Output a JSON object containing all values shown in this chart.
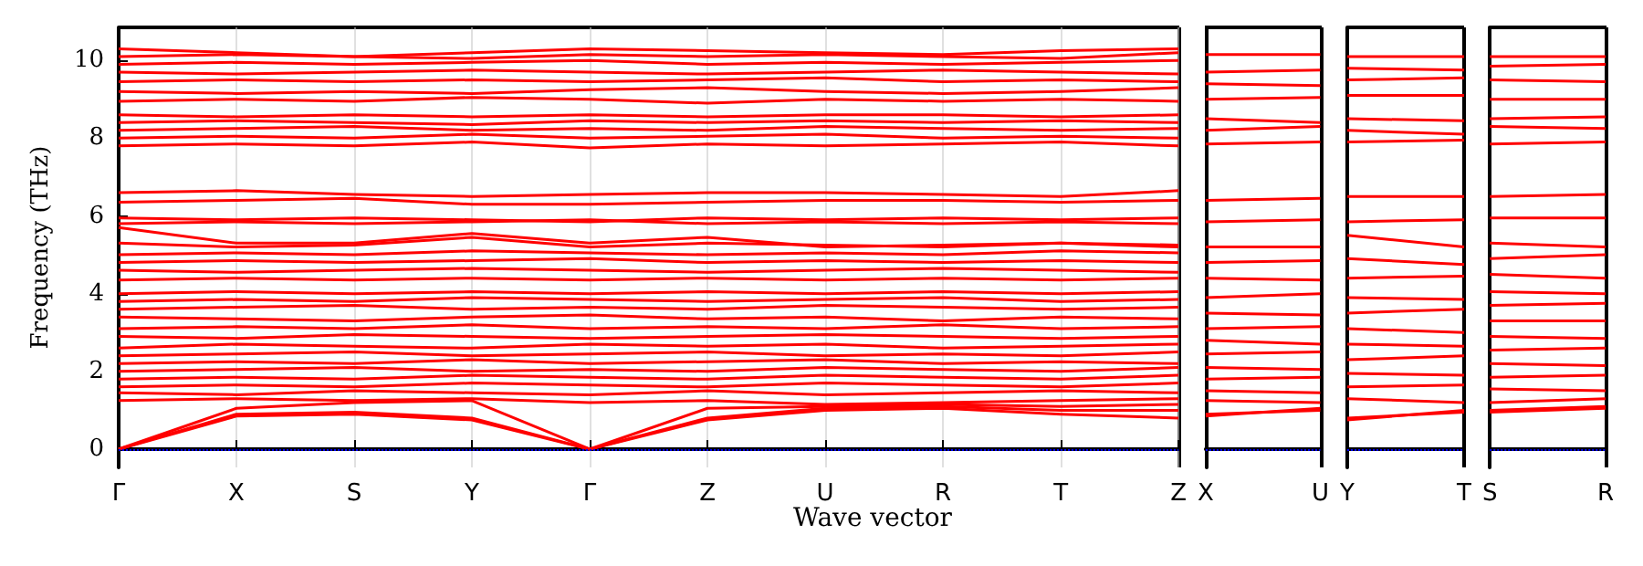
{
  "chart_data": [
    {
      "type": "line",
      "xlabel": "Wave vector",
      "ylabel": "Frequency (THz)",
      "categories": [
        "Γ",
        "X",
        "S",
        "Y",
        "Γ",
        "Z",
        "U",
        "R",
        "T",
        "Z"
      ],
      "ylim": [
        -0.47,
        10.85
      ],
      "yticks": [
        0,
        2,
        4,
        6,
        8,
        10
      ],
      "grid": "x",
      "ref_lines": [
        {
          "axis": "y",
          "value": 0,
          "color": "#0000ff",
          "line_style": "dotted"
        }
      ],
      "series": [
        {
          "color": "#ff0000",
          "values": [
            0,
            0.85,
            0.9,
            0.75,
            0,
            0.75,
            1.0,
            1.05,
            0.9,
            0.8
          ]
        },
        {
          "color": "#ff0000",
          "values": [
            0,
            0.9,
            0.95,
            0.8,
            0,
            0.8,
            1.05,
            1.1,
            1.0,
            1.0
          ]
        },
        {
          "color": "#ff0000",
          "values": [
            0,
            1.05,
            1.2,
            1.25,
            0,
            1.05,
            1.1,
            1.15,
            1.1,
            1.15
          ]
        },
        {
          "color": "#ff0000",
          "values": [
            1.25,
            1.3,
            1.25,
            1.3,
            1.2,
            1.25,
            1.15,
            1.2,
            1.25,
            1.3
          ]
        },
        {
          "color": "#ff0000",
          "values": [
            1.45,
            1.4,
            1.5,
            1.45,
            1.4,
            1.5,
            1.4,
            1.45,
            1.5,
            1.45
          ]
        },
        {
          "color": "#ff0000",
          "values": [
            1.6,
            1.65,
            1.6,
            1.7,
            1.65,
            1.6,
            1.7,
            1.65,
            1.6,
            1.7
          ]
        },
        {
          "color": "#ff0000",
          "values": [
            1.8,
            1.85,
            1.8,
            1.9,
            1.85,
            1.8,
            1.9,
            1.85,
            1.8,
            1.9
          ]
        },
        {
          "color": "#ff0000",
          "values": [
            2.0,
            2.05,
            2.1,
            2.0,
            2.05,
            2.0,
            2.1,
            2.05,
            2.0,
            2.1
          ]
        },
        {
          "color": "#ff0000",
          "values": [
            2.2,
            2.25,
            2.2,
            2.3,
            2.2,
            2.25,
            2.3,
            2.2,
            2.25,
            2.2
          ]
        },
        {
          "color": "#ff0000",
          "values": [
            2.4,
            2.45,
            2.5,
            2.4,
            2.45,
            2.5,
            2.4,
            2.45,
            2.4,
            2.5
          ]
        },
        {
          "color": "#ff0000",
          "values": [
            2.6,
            2.7,
            2.65,
            2.6,
            2.7,
            2.65,
            2.7,
            2.6,
            2.65,
            2.7
          ]
        },
        {
          "color": "#ff0000",
          "values": [
            2.9,
            2.85,
            2.95,
            2.9,
            2.85,
            2.9,
            2.95,
            2.9,
            2.85,
            2.9
          ]
        },
        {
          "color": "#ff0000",
          "values": [
            3.1,
            3.15,
            3.1,
            3.2,
            3.1,
            3.15,
            3.1,
            3.2,
            3.1,
            3.15
          ]
        },
        {
          "color": "#ff0000",
          "values": [
            3.4,
            3.35,
            3.3,
            3.4,
            3.45,
            3.35,
            3.4,
            3.3,
            3.4,
            3.35
          ]
        },
        {
          "color": "#ff0000",
          "values": [
            3.6,
            3.65,
            3.7,
            3.6,
            3.65,
            3.6,
            3.7,
            3.65,
            3.6,
            3.65
          ]
        },
        {
          "color": "#ff0000",
          "values": [
            3.8,
            3.85,
            3.8,
            3.9,
            3.85,
            3.8,
            3.85,
            3.9,
            3.8,
            3.85
          ]
        },
        {
          "color": "#ff0000",
          "values": [
            4.0,
            4.05,
            4.0,
            4.05,
            4.0,
            4.05,
            4.0,
            4.05,
            4.0,
            4.05
          ]
        },
        {
          "color": "#ff0000",
          "values": [
            4.35,
            4.4,
            4.35,
            4.4,
            4.35,
            4.4,
            4.35,
            4.4,
            4.35,
            4.4
          ]
        },
        {
          "color": "#ff0000",
          "values": [
            4.6,
            4.55,
            4.6,
            4.65,
            4.6,
            4.55,
            4.6,
            4.65,
            4.6,
            4.55
          ]
        },
        {
          "color": "#ff0000",
          "values": [
            4.8,
            4.85,
            4.8,
            4.85,
            4.9,
            4.8,
            4.85,
            4.8,
            4.85,
            4.8
          ]
        },
        {
          "color": "#ff0000",
          "values": [
            5.0,
            5.05,
            5.0,
            5.1,
            5.05,
            5.0,
            5.05,
            5.0,
            5.1,
            5.05
          ]
        },
        {
          "color": "#ff0000",
          "values": [
            5.3,
            5.2,
            5.25,
            5.45,
            5.2,
            5.3,
            5.25,
            5.2,
            5.3,
            5.25
          ]
        },
        {
          "color": "#ff0000",
          "values": [
            5.7,
            5.3,
            5.3,
            5.55,
            5.3,
            5.45,
            5.2,
            5.25,
            5.3,
            5.2
          ]
        },
        {
          "color": "#ff0000",
          "values": [
            5.8,
            5.85,
            5.8,
            5.85,
            5.9,
            5.8,
            5.85,
            5.8,
            5.85,
            5.8
          ]
        },
        {
          "color": "#ff0000",
          "values": [
            5.95,
            5.9,
            5.95,
            5.9,
            5.85,
            5.95,
            5.9,
            5.95,
            5.9,
            5.95
          ]
        },
        {
          "color": "#ff0000",
          "values": [
            6.35,
            6.4,
            6.45,
            6.3,
            6.3,
            6.35,
            6.4,
            6.4,
            6.35,
            6.4
          ]
        },
        {
          "color": "#ff0000",
          "values": [
            6.6,
            6.65,
            6.55,
            6.5,
            6.55,
            6.6,
            6.6,
            6.55,
            6.5,
            6.65
          ]
        },
        {
          "color": "#ff0000",
          "values": [
            7.8,
            7.85,
            7.8,
            7.9,
            7.75,
            7.85,
            7.8,
            7.85,
            7.9,
            7.8
          ]
        },
        {
          "color": "#ff0000",
          "values": [
            8.0,
            8.05,
            8.0,
            8.1,
            8.0,
            8.05,
            8.1,
            8.0,
            8.05,
            8.0
          ]
        },
        {
          "color": "#ff0000",
          "values": [
            8.2,
            8.25,
            8.3,
            8.2,
            8.25,
            8.2,
            8.3,
            8.25,
            8.2,
            8.25
          ]
        },
        {
          "color": "#ff0000",
          "values": [
            8.4,
            8.45,
            8.4,
            8.35,
            8.45,
            8.4,
            8.45,
            8.4,
            8.45,
            8.4
          ]
        },
        {
          "color": "#ff0000",
          "values": [
            8.6,
            8.55,
            8.6,
            8.55,
            8.6,
            8.55,
            8.6,
            8.6,
            8.55,
            8.6
          ]
        },
        {
          "color": "#ff0000",
          "values": [
            8.95,
            9.0,
            8.95,
            9.05,
            9.0,
            8.9,
            9.0,
            8.95,
            9.0,
            8.95
          ]
        },
        {
          "color": "#ff0000",
          "values": [
            9.2,
            9.15,
            9.2,
            9.15,
            9.25,
            9.3,
            9.2,
            9.15,
            9.2,
            9.3
          ]
        },
        {
          "color": "#ff0000",
          "values": [
            9.45,
            9.5,
            9.45,
            9.5,
            9.45,
            9.5,
            9.55,
            9.45,
            9.5,
            9.45
          ]
        },
        {
          "color": "#ff0000",
          "values": [
            9.7,
            9.65,
            9.7,
            9.75,
            9.7,
            9.65,
            9.7,
            9.75,
            9.7,
            9.65
          ]
        },
        {
          "color": "#ff0000",
          "values": [
            9.9,
            9.95,
            9.9,
            9.95,
            10.0,
            9.9,
            9.95,
            9.9,
            9.95,
            10.0
          ]
        },
        {
          "color": "#ff0000",
          "values": [
            10.1,
            10.15,
            10.1,
            10.05,
            10.15,
            10.1,
            10.15,
            10.1,
            10.05,
            10.2
          ]
        },
        {
          "color": "#ff0000",
          "values": [
            10.3,
            10.2,
            10.1,
            10.2,
            10.3,
            10.25,
            10.2,
            10.15,
            10.25,
            10.3
          ]
        }
      ]
    },
    {
      "type": "line",
      "categories": [
        "X",
        "U"
      ],
      "ylim": [
        -0.47,
        10.85
      ],
      "yticks": [
        0,
        2,
        4,
        6,
        8,
        10
      ],
      "tick_labels": "x",
      "ref_lines": [
        {
          "axis": "y",
          "value": 0,
          "color": "#0000ff",
          "line_style": "dotted"
        }
      ],
      "series": [
        {
          "color": "#ff0000",
          "values": [
            0.85,
            1.05
          ]
        },
        {
          "color": "#ff0000",
          "values": [
            0.9,
            1.0
          ]
        },
        {
          "color": "#ff0000",
          "values": [
            1.25,
            1.2
          ]
        },
        {
          "color": "#ff0000",
          "values": [
            1.5,
            1.45
          ]
        },
        {
          "color": "#ff0000",
          "values": [
            1.8,
            1.85
          ]
        },
        {
          "color": "#ff0000",
          "values": [
            2.1,
            2.05
          ]
        },
        {
          "color": "#ff0000",
          "values": [
            2.45,
            2.5
          ]
        },
        {
          "color": "#ff0000",
          "values": [
            2.8,
            2.7
          ]
        },
        {
          "color": "#ff0000",
          "values": [
            3.1,
            3.15
          ]
        },
        {
          "color": "#ff0000",
          "values": [
            3.5,
            3.45
          ]
        },
        {
          "color": "#ff0000",
          "values": [
            3.9,
            4.0
          ]
        },
        {
          "color": "#ff0000",
          "values": [
            4.4,
            4.35
          ]
        },
        {
          "color": "#ff0000",
          "values": [
            4.8,
            4.85
          ]
        },
        {
          "color": "#ff0000",
          "values": [
            5.2,
            5.2
          ]
        },
        {
          "color": "#ff0000",
          "values": [
            5.85,
            5.9
          ]
        },
        {
          "color": "#ff0000",
          "values": [
            6.4,
            6.45
          ]
        },
        {
          "color": "#ff0000",
          "values": [
            7.85,
            7.9
          ]
        },
        {
          "color": "#ff0000",
          "values": [
            8.2,
            8.3
          ]
        },
        {
          "color": "#ff0000",
          "values": [
            8.5,
            8.4
          ]
        },
        {
          "color": "#ff0000",
          "values": [
            9.0,
            9.05
          ]
        },
        {
          "color": "#ff0000",
          "values": [
            9.4,
            9.35
          ]
        },
        {
          "color": "#ff0000",
          "values": [
            9.7,
            9.75
          ]
        },
        {
          "color": "#ff0000",
          "values": [
            10.15,
            10.15
          ]
        }
      ]
    },
    {
      "type": "line",
      "categories": [
        "Y",
        "T"
      ],
      "ylim": [
        -0.47,
        10.85
      ],
      "yticks": [
        0,
        2,
        4,
        6,
        8,
        10
      ],
      "tick_labels": "x",
      "ref_lines": [
        {
          "axis": "y",
          "value": 0,
          "color": "#0000ff",
          "line_style": "dotted"
        }
      ],
      "series": [
        {
          "color": "#ff0000",
          "values": [
            0.75,
            1.0
          ]
        },
        {
          "color": "#ff0000",
          "values": [
            0.8,
            0.95
          ]
        },
        {
          "color": "#ff0000",
          "values": [
            1.3,
            1.2
          ]
        },
        {
          "color": "#ff0000",
          "values": [
            1.6,
            1.65
          ]
        },
        {
          "color": "#ff0000",
          "values": [
            1.95,
            1.9
          ]
        },
        {
          "color": "#ff0000",
          "values": [
            2.3,
            2.4
          ]
        },
        {
          "color": "#ff0000",
          "values": [
            2.7,
            2.65
          ]
        },
        {
          "color": "#ff0000",
          "values": [
            3.1,
            3.0
          ]
        },
        {
          "color": "#ff0000",
          "values": [
            3.5,
            3.6
          ]
        },
        {
          "color": "#ff0000",
          "values": [
            3.9,
            3.85
          ]
        },
        {
          "color": "#ff0000",
          "values": [
            4.4,
            4.45
          ]
        },
        {
          "color": "#ff0000",
          "values": [
            4.9,
            4.75
          ]
        },
        {
          "color": "#ff0000",
          "values": [
            5.5,
            5.2
          ]
        },
        {
          "color": "#ff0000",
          "values": [
            5.85,
            5.9
          ]
        },
        {
          "color": "#ff0000",
          "values": [
            6.5,
            6.5
          ]
        },
        {
          "color": "#ff0000",
          "values": [
            7.9,
            7.95
          ]
        },
        {
          "color": "#ff0000",
          "values": [
            8.2,
            8.1
          ]
        },
        {
          "color": "#ff0000",
          "values": [
            8.5,
            8.45
          ]
        },
        {
          "color": "#ff0000",
          "values": [
            9.1,
            9.1
          ]
        },
        {
          "color": "#ff0000",
          "values": [
            9.5,
            9.55
          ]
        },
        {
          "color": "#ff0000",
          "values": [
            9.8,
            9.75
          ]
        },
        {
          "color": "#ff0000",
          "values": [
            10.1,
            10.1
          ]
        }
      ]
    },
    {
      "type": "line",
      "categories": [
        "S",
        "R"
      ],
      "ylim": [
        -0.47,
        10.85
      ],
      "yticks": [
        0,
        2,
        4,
        6,
        8,
        10
      ],
      "tick_labels": "x",
      "ref_lines": [
        {
          "axis": "y",
          "value": 0,
          "color": "#0000ff",
          "line_style": "dotted"
        }
      ],
      "series": [
        {
          "color": "#ff0000",
          "values": [
            0.95,
            1.05
          ]
        },
        {
          "color": "#ff0000",
          "values": [
            1.0,
            1.1
          ]
        },
        {
          "color": "#ff0000",
          "values": [
            1.2,
            1.3
          ]
        },
        {
          "color": "#ff0000",
          "values": [
            1.55,
            1.5
          ]
        },
        {
          "color": "#ff0000",
          "values": [
            1.85,
            1.9
          ]
        },
        {
          "color": "#ff0000",
          "values": [
            2.2,
            2.15
          ]
        },
        {
          "color": "#ff0000",
          "values": [
            2.55,
            2.6
          ]
        },
        {
          "color": "#ff0000",
          "values": [
            2.9,
            2.85
          ]
        },
        {
          "color": "#ff0000",
          "values": [
            3.3,
            3.3
          ]
        },
        {
          "color": "#ff0000",
          "values": [
            3.7,
            3.75
          ]
        },
        {
          "color": "#ff0000",
          "values": [
            4.05,
            4.0
          ]
        },
        {
          "color": "#ff0000",
          "values": [
            4.5,
            4.4
          ]
        },
        {
          "color": "#ff0000",
          "values": [
            4.9,
            5.0
          ]
        },
        {
          "color": "#ff0000",
          "values": [
            5.3,
            5.2
          ]
        },
        {
          "color": "#ff0000",
          "values": [
            5.95,
            5.95
          ]
        },
        {
          "color": "#ff0000",
          "values": [
            6.5,
            6.55
          ]
        },
        {
          "color": "#ff0000",
          "values": [
            7.85,
            7.9
          ]
        },
        {
          "color": "#ff0000",
          "values": [
            8.3,
            8.25
          ]
        },
        {
          "color": "#ff0000",
          "values": [
            8.5,
            8.55
          ]
        },
        {
          "color": "#ff0000",
          "values": [
            9.0,
            9.0
          ]
        },
        {
          "color": "#ff0000",
          "values": [
            9.5,
            9.45
          ]
        },
        {
          "color": "#ff0000",
          "values": [
            9.85,
            9.9
          ]
        },
        {
          "color": "#ff0000",
          "values": [
            10.1,
            10.1
          ]
        }
      ]
    }
  ]
}
